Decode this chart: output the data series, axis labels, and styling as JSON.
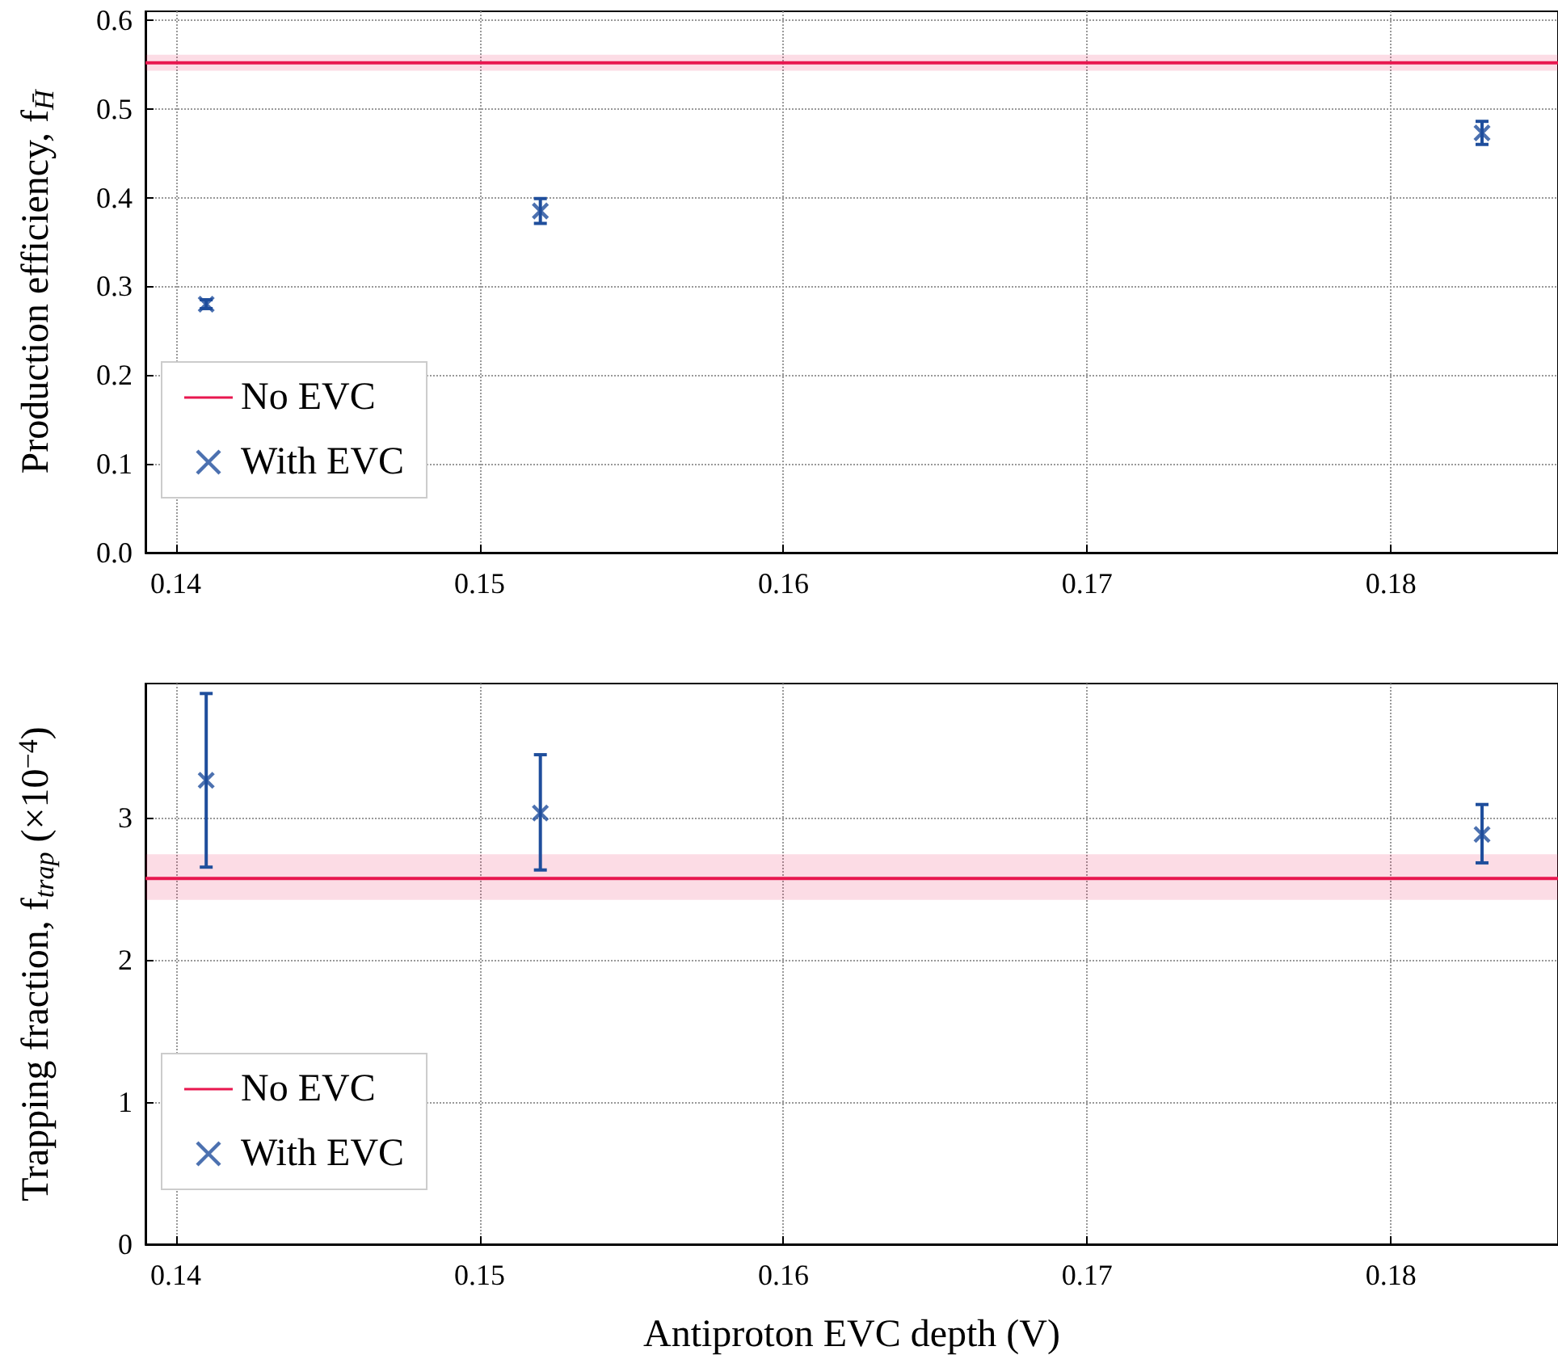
{
  "chart_data": [
    {
      "type": "scatter",
      "ylabel": "Production efficiency, f$_{H̄}$",
      "xlim": [
        0.139,
        0.1855
      ],
      "xticks": [
        0.14,
        0.15,
        0.16,
        0.17,
        0.18
      ],
      "ylim": [
        0,
        0.61
      ],
      "yticks": [
        {
          "value": 0,
          "label": "0.0"
        },
        0.1,
        0.2,
        0.3,
        0.4,
        0.5,
        0.6
      ],
      "grid": true,
      "legend": "bottom left",
      "series": [
        {
          "name": "No EVC",
          "type": "line",
          "color": "#e8174f",
          "marker": "none",
          "x": [
            0.139,
            0.1855
          ],
          "values": [
            0.552,
            0.552
          ],
          "lower": [
            0.543,
            0.543
          ],
          "upper": [
            0.561,
            0.561
          ]
        },
        {
          "name": "With EVC",
          "type": "scatter",
          "color": "#1f4e9c",
          "marker": "cross",
          "x": [
            0.141,
            0.152,
            0.183
          ],
          "values": [
            0.28,
            0.385,
            0.473
          ],
          "errors": [
            0.005,
            0.014,
            0.013
          ]
        }
      ]
    },
    {
      "type": "scatter",
      "ylabel": "Trapping fraction, f$_{trap}$ (×10$^{−4}$)",
      "xlabel": "Antiproton EVC depth (V)",
      "xlim": [
        0.139,
        0.1855
      ],
      "xticks": [
        0.14,
        0.15,
        0.16,
        0.17,
        0.18
      ],
      "ylim": [
        0,
        3.94
      ],
      "yticks": [
        0,
        1,
        2,
        3
      ],
      "grid": true,
      "legend": "bottom left",
      "series": [
        {
          "name": "No EVC",
          "type": "line",
          "color": "#e8174f",
          "marker": "none",
          "x": [
            0.139,
            0.1855
          ],
          "values": [
            2.57,
            2.57
          ],
          "lower": [
            2.42,
            2.42
          ],
          "upper": [
            2.74,
            2.74
          ]
        },
        {
          "name": "With EVC",
          "type": "scatter",
          "color": "#1f4e9c",
          "marker": "cross",
          "x": [
            0.141,
            0.152,
            0.183
          ],
          "values": [
            3.26,
            3.03,
            2.88
          ],
          "errors": [
            [
              2.65,
              3.87
            ],
            [
              2.63,
              3.44
            ],
            [
              2.68,
              3.09
            ]
          ]
        }
      ]
    }
  ]
}
